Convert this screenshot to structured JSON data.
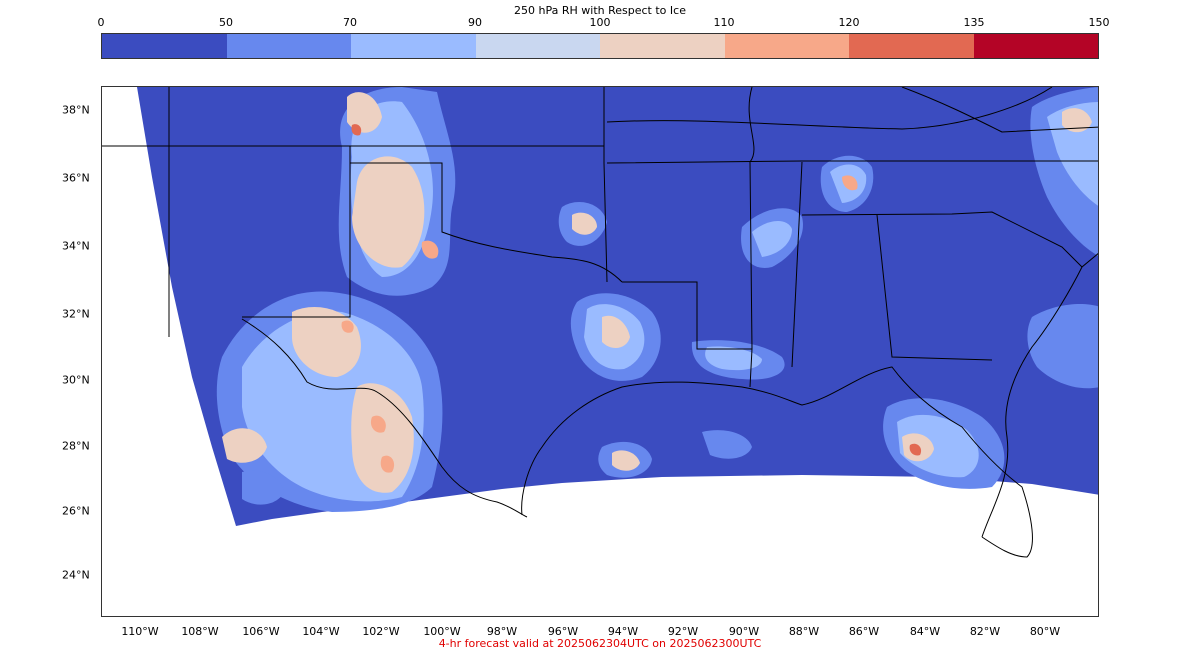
{
  "colorbar": {
    "title": "250 hPa RH with Respect to Ice",
    "bounds": [
      "0",
      "50",
      "70",
      "90",
      "100",
      "110",
      "120",
      "135",
      "150"
    ],
    "colors": [
      "#3b4cc0",
      "#6788ee",
      "#9abbff",
      "#c9d7f0",
      "#edd1c2",
      "#f7a889",
      "#e26952",
      "#b40426"
    ]
  },
  "map": {
    "lat_labels": [
      "38°N",
      "36°N",
      "34°N",
      "32°N",
      "30°N",
      "28°N",
      "26°N",
      "24°N"
    ],
    "lon_labels": [
      "110°W",
      "108°W",
      "106°W",
      "104°W",
      "102°W",
      "100°W",
      "98°W",
      "96°W",
      "94°W",
      "92°W",
      "90°W",
      "88°W",
      "86°W",
      "84°W",
      "82°W",
      "80°W"
    ],
    "background_field": "#3b4cc0",
    "border_color": "#000000",
    "out_of_domain_color": "#ffffff"
  },
  "footer": {
    "text": "4-hr forecast valid at 2025062304UTC on 2025062300UTC",
    "color": "#e00000"
  }
}
